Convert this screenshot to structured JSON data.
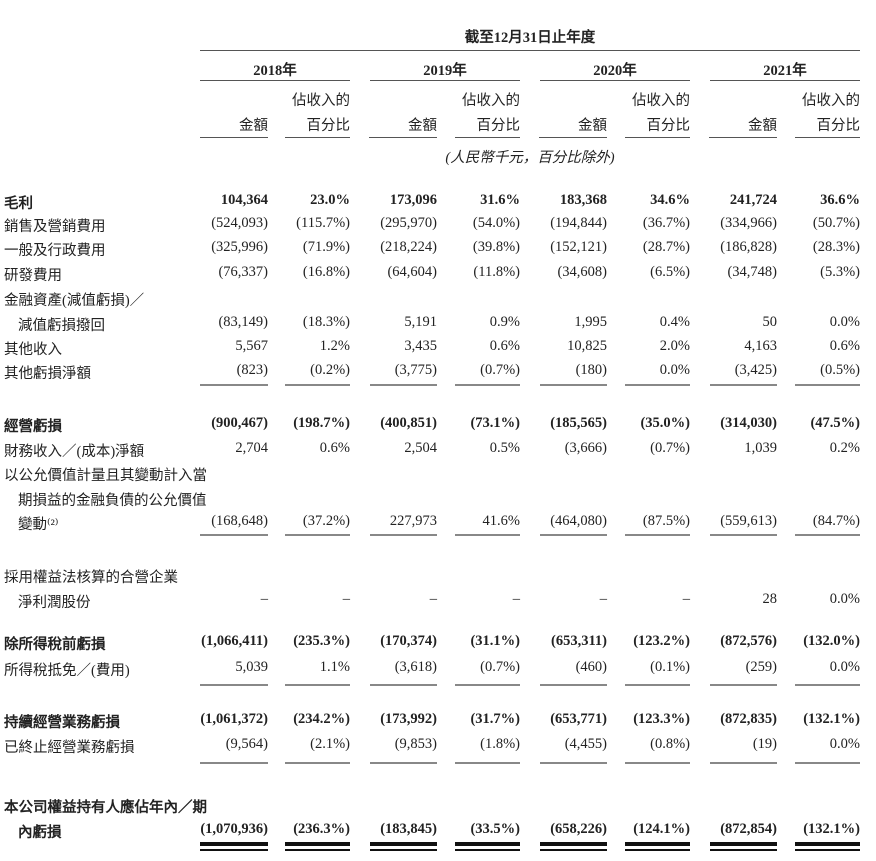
{
  "header": {
    "period": "截至12月31日止年度",
    "years": [
      "2018年",
      "2019年",
      "2020年",
      "2021年"
    ],
    "col_amount": "金額",
    "col_pct_line1": "佔收入的",
    "col_pct_line2": "百分比",
    "unit_note": "(人民幣千元，百分比除外)"
  },
  "rows": [
    {
      "label": [
        "毛利"
      ],
      "bold": true,
      "values": [
        "104,364",
        "23.0%",
        "173,096",
        "31.6%",
        "183,368",
        "34.6%",
        "241,724",
        "36.6%"
      ]
    },
    {
      "label": [
        "銷售及營銷費用"
      ],
      "values": [
        "(524,093)",
        "(115.7%)",
        "(295,970)",
        "(54.0%)",
        "(194,844)",
        "(36.7%)",
        "(334,966)",
        "(50.7%)"
      ]
    },
    {
      "label": [
        "一般及行政費用"
      ],
      "values": [
        "(325,996)",
        "(71.9%)",
        "(218,224)",
        "(39.8%)",
        "(152,121)",
        "(28.7%)",
        "(186,828)",
        "(28.3%)"
      ]
    },
    {
      "label": [
        "研發費用"
      ],
      "values": [
        "(76,337)",
        "(16.8%)",
        "(64,604)",
        "(11.8%)",
        "(34,608)",
        "(6.5%)",
        "(34,748)",
        "(5.3%)"
      ]
    },
    {
      "label": [
        "金融資產(減值虧損)／",
        "減值虧損撥回"
      ],
      "values": [
        "(83,149)",
        "(18.3%)",
        "5,191",
        "0.9%",
        "1,995",
        "0.4%",
        "50",
        "0.0%"
      ]
    },
    {
      "label": [
        "其他收入"
      ],
      "values": [
        "5,567",
        "1.2%",
        "3,435",
        "0.6%",
        "10,825",
        "2.0%",
        "4,163",
        "0.6%"
      ]
    },
    {
      "label": [
        "其他虧損淨額"
      ],
      "values": [
        "(823)",
        "(0.2%)",
        "(3,775)",
        "(0.7%)",
        "(180)",
        "0.0%",
        "(3,425)",
        "(0.5%)"
      ]
    },
    {
      "label": [
        "經營虧損"
      ],
      "bold": true,
      "values": [
        "(900,467)",
        "(198.7%)",
        "(400,851)",
        "(73.1%)",
        "(185,565)",
        "(35.0%)",
        "(314,030)",
        "(47.5%)"
      ]
    },
    {
      "label": [
        "財務收入／(成本)淨額"
      ],
      "values": [
        "2,704",
        "0.6%",
        "2,504",
        "0.5%",
        "(3,666)",
        "(0.7%)",
        "1,039",
        "0.2%"
      ]
    },
    {
      "label": [
        "以公允價值計量且其變動計入當",
        "期損益的金融負債的公允價值",
        "變動⁽²⁾"
      ],
      "values": [
        "(168,648)",
        "(37.2%)",
        "227,973",
        "41.6%",
        "(464,080)",
        "(87.5%)",
        "(559,613)",
        "(84.7%)"
      ]
    },
    {
      "label": [
        "採用權益法核算的合營企業",
        "淨利潤股份"
      ],
      "values": [
        "–",
        "–",
        "–",
        "–",
        "–",
        "–",
        "28",
        "0.0%"
      ]
    },
    {
      "label": [
        "除所得稅前虧損"
      ],
      "bold": true,
      "values": [
        "(1,066,411)",
        "(235.3%)",
        "(170,374)",
        "(31.1%)",
        "(653,311)",
        "(123.2%)",
        "(872,576)",
        "(132.0%)"
      ]
    },
    {
      "label": [
        "所得稅抵免／(費用)"
      ],
      "values": [
        "5,039",
        "1.1%",
        "(3,618)",
        "(0.7%)",
        "(460)",
        "(0.1%)",
        "(259)",
        "0.0%"
      ]
    },
    {
      "label": [
        "持續經營業務虧損"
      ],
      "bold": true,
      "values": [
        "(1,061,372)",
        "(234.2%)",
        "(173,992)",
        "(31.7%)",
        "(653,771)",
        "(123.3%)",
        "(872,835)",
        "(132.1%)"
      ]
    },
    {
      "label": [
        "已終止經營業務虧損"
      ],
      "values": [
        "(9,564)",
        "(2.1%)",
        "(9,853)",
        "(1.8%)",
        "(4,455)",
        "(0.8%)",
        "(19)",
        "0.0%"
      ]
    },
    {
      "label": [
        "本公司權益持有人應佔年內／期",
        "內虧損"
      ],
      "bold": true,
      "values": [
        "(1,070,936)",
        "(236.3%)",
        "(183,845)",
        "(33.5%)",
        "(658,226)",
        "(124.1%)",
        "(872,854)",
        "(132.1%)"
      ]
    }
  ]
}
